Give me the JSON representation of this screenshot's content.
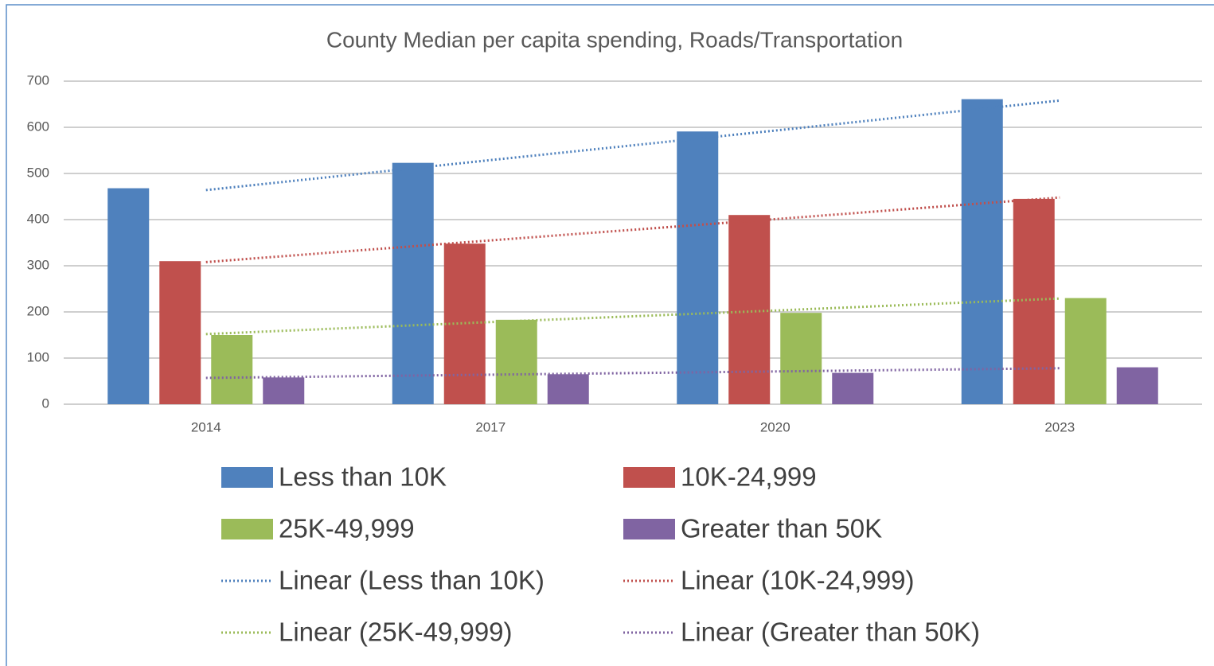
{
  "chart_data": {
    "type": "bar",
    "title": "County Median per capita spending, Roads/Transportation",
    "categories": [
      "2014",
      "2017",
      "2020",
      "2023"
    ],
    "series": [
      {
        "name": "Less than 10K",
        "color": "#4f81bd",
        "values": [
          468,
          523,
          591,
          661
        ]
      },
      {
        "name": "10K-24,999",
        "color": "#c0504d",
        "values": [
          310,
          348,
          410,
          445
        ]
      },
      {
        "name": "25K-49,999",
        "color": "#9bbb59",
        "values": [
          150,
          183,
          198,
          230
        ]
      },
      {
        "name": "Greater than 50K",
        "color": "#8064a2",
        "values": [
          58,
          65,
          68,
          80
        ]
      }
    ],
    "trendlines": [
      {
        "name": "Linear (Less than 10K)",
        "color": "#4f81bd",
        "values": [
          464,
          529,
          593,
          658
        ]
      },
      {
        "name": "Linear (10K-24,999)",
        "color": "#c0504d",
        "values": [
          308,
          355,
          401,
          448
        ]
      },
      {
        "name": "Linear (25K-49,999)",
        "color": "#9bbb59",
        "values": [
          152,
          178,
          203,
          229
        ]
      },
      {
        "name": "Linear (Greater than 50K)",
        "color": "#8064a2",
        "values": [
          57,
          64,
          71,
          78
        ]
      }
    ],
    "ylim": [
      0,
      700
    ],
    "yticks": [
      0,
      100,
      200,
      300,
      400,
      500,
      600,
      700
    ],
    "grid": true
  }
}
